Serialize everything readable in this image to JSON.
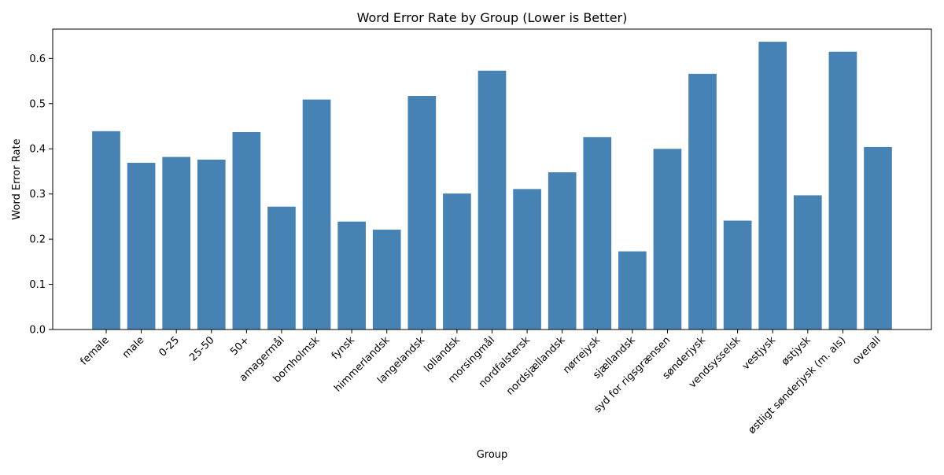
{
  "chart_data": {
    "type": "bar",
    "title": "Word Error Rate by Group (Lower is Better)",
    "xlabel": "Group",
    "ylabel": "Word Error Rate",
    "ylim": [
      0,
      0.665
    ],
    "yticks": [
      0.0,
      0.1,
      0.2,
      0.3,
      0.4,
      0.5,
      0.6
    ],
    "ytick_labels": [
      "0.0",
      "0.1",
      "0.2",
      "0.3",
      "0.4",
      "0.5",
      "0.6"
    ],
    "grid": false,
    "bar_color": "#4682b4",
    "categories": [
      "female",
      "male",
      "0-25",
      "25-50",
      "50+",
      "amagermål",
      "bornholmsk",
      "fynsk",
      "himmerlandsk",
      "langelandsk",
      "lollandsk",
      "morsingmål",
      "nordfalstersk",
      "nordsjællandsk",
      "nørrejysk",
      "sjællandsk",
      "syd for rigsgrænsen",
      "sønderjysk",
      "vendsysselsk",
      "vestjysk",
      "østjysk",
      "østligt sønderjysk (m. als)",
      "overall"
    ],
    "values": [
      0.439,
      0.369,
      0.382,
      0.376,
      0.437,
      0.272,
      0.509,
      0.239,
      0.221,
      0.517,
      0.301,
      0.573,
      0.311,
      0.348,
      0.426,
      0.173,
      0.4,
      0.566,
      0.241,
      0.637,
      0.297,
      0.615,
      0.404
    ]
  }
}
